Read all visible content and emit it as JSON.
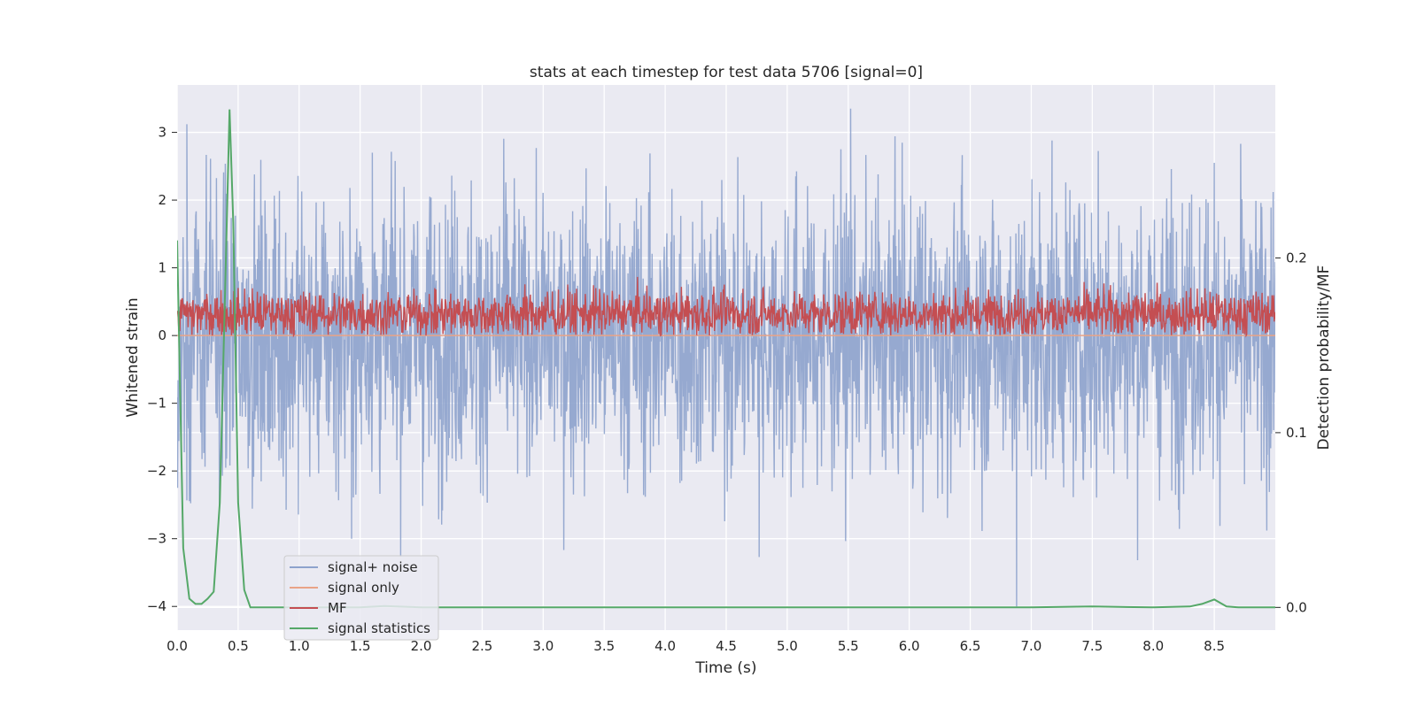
{
  "chart_data": {
    "type": "line",
    "title": "stats at each timestep for test data 5706 [signal=0]",
    "xlabel": "Time (s)",
    "ylabel": "Whitened strain",
    "y2label": "Detection probability/MF",
    "xlim": [
      0.0,
      9.0
    ],
    "ylim": [
      -4.35,
      3.7
    ],
    "y2lim": [
      -0.013,
      0.299
    ],
    "x_ticks": [
      "0.0",
      "0.5",
      "1.0",
      "1.5",
      "2.0",
      "2.5",
      "3.0",
      "3.5",
      "4.0",
      "4.5",
      "5.0",
      "5.5",
      "6.0",
      "6.5",
      "7.0",
      "7.5",
      "8.0",
      "8.5"
    ],
    "y_ticks": [
      "3",
      "2",
      "1",
      "0",
      "−1",
      "−2",
      "−3",
      "−4"
    ],
    "y2_ticks": [
      "0.2",
      "0.1",
      "0.0"
    ],
    "grid": true,
    "legend_placement": "lower-left",
    "colors": {
      "background": "#eaeaf2",
      "grid": "#ffffff",
      "signal_noise": "#8da2cc",
      "signal_only": "#e9a387",
      "mf": "#c44e52",
      "signal_statistics": "#55a868"
    },
    "series": [
      {
        "name": "signal+ noise",
        "axis": "left",
        "style": "noise",
        "description_range": [
          -4.0,
          3.35
        ],
        "peaks": [
          {
            "x": 0.08,
            "y": 3.12
          },
          {
            "x": 1.6,
            "y": 2.7
          },
          {
            "x": 5.52,
            "y": 3.35
          },
          {
            "x": 7.17,
            "y": 2.88
          },
          {
            "x": 8.5,
            "y": 2.55
          }
        ],
        "troughs": [
          {
            "x": 1.43,
            "y": -3.0
          },
          {
            "x": 4.77,
            "y": -3.27
          },
          {
            "x": 6.88,
            "y": -4.0
          },
          {
            "x": 8.93,
            "y": -2.88
          }
        ]
      },
      {
        "name": "signal only",
        "axis": "left",
        "style": "flat",
        "x": [
          0.0,
          9.0
        ],
        "y": [
          0.0,
          0.0
        ]
      },
      {
        "name": "MF",
        "axis": "left",
        "style": "band",
        "description_range": [
          0.0,
          1.0
        ]
      },
      {
        "name": "signal statistics",
        "axis": "right",
        "style": "line",
        "x": [
          0.0,
          0.05,
          0.1,
          0.15,
          0.2,
          0.25,
          0.3,
          0.35,
          0.4,
          0.43,
          0.46,
          0.5,
          0.55,
          0.6,
          0.8,
          1.0,
          1.5,
          1.7,
          2.0,
          3.0,
          4.0,
          5.0,
          6.0,
          7.0,
          7.5,
          8.0,
          8.3,
          8.4,
          8.5,
          8.6,
          8.7,
          9.0
        ],
        "y": [
          0.21,
          0.034,
          0.005,
          0.002,
          0.002,
          0.005,
          0.009,
          0.06,
          0.2,
          0.285,
          0.22,
          0.06,
          0.01,
          0.0,
          0.0,
          0.0,
          0.0,
          0.0008,
          0.0,
          0.0,
          0.0,
          0.0,
          0.0,
          0.0,
          0.0005,
          0.0,
          0.0005,
          0.002,
          0.0045,
          0.0005,
          0.0,
          0.0
        ]
      }
    ]
  }
}
